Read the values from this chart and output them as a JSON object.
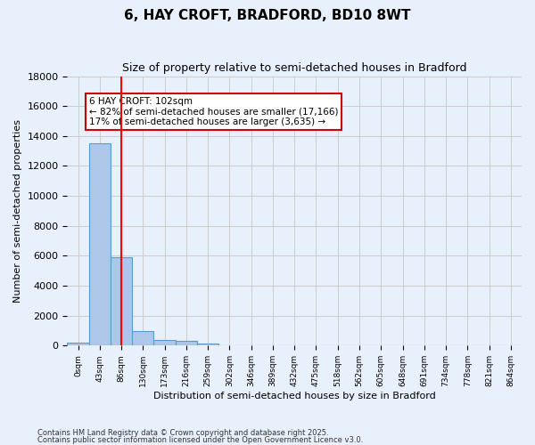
{
  "title": "6, HAY CROFT, BRADFORD, BD10 8WT",
  "subtitle": "Size of property relative to semi-detached houses in Bradford",
  "xlabel": "Distribution of semi-detached houses by size in Bradford",
  "ylabel": "Number of semi-detached properties",
  "bin_labels": [
    "0sqm",
    "43sqm",
    "86sqm",
    "130sqm",
    "173sqm",
    "216sqm",
    "259sqm",
    "302sqm",
    "346sqm",
    "389sqm",
    "432sqm",
    "475sqm",
    "518sqm",
    "562sqm",
    "605sqm",
    "648sqm",
    "691sqm",
    "734sqm",
    "778sqm",
    "821sqm",
    "864sqm"
  ],
  "bar_values": [
    200,
    13500,
    5900,
    1000,
    350,
    300,
    150,
    0,
    0,
    0,
    0,
    0,
    0,
    0,
    0,
    0,
    0,
    0,
    0,
    0,
    0
  ],
  "bar_color": "#aec6e8",
  "bar_edge_color": "#5b9bd5",
  "red_line_x": 2,
  "annotation_text": "6 HAY CROFT: 102sqm\n← 82% of semi-detached houses are smaller (17,166)\n17% of semi-detached houses are larger (3,635) →",
  "annotation_box_color": "#ffffff",
  "annotation_box_edge": "#cc0000",
  "ylim": [
    0,
    18000
  ],
  "yticks": [
    0,
    2000,
    4000,
    6000,
    8000,
    10000,
    12000,
    14000,
    16000,
    18000
  ],
  "grid_color": "#cccccc",
  "background_color": "#e8f0fb",
  "footer1": "Contains HM Land Registry data © Crown copyright and database right 2025.",
  "footer2": "Contains public sector information licensed under the Open Government Licence v3.0."
}
